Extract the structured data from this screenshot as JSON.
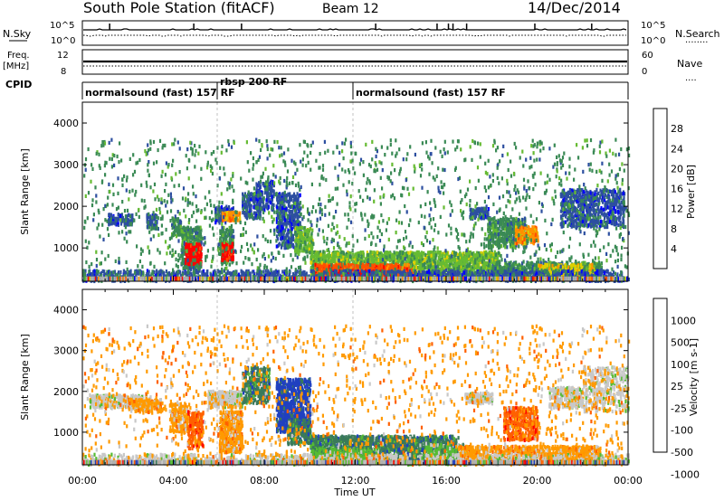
{
  "header": {
    "station": "South Pole Station (fitACF)",
    "beam": "Beam 12",
    "date": "14/Dec/2014"
  },
  "panel_sky": {
    "left_label": "N.Sky",
    "left_ticks": [
      "10^5",
      "10^0"
    ],
    "right_label": "N.Search",
    "right_ticks": [
      "10^5",
      "10^0"
    ],
    "right_legend": "........"
  },
  "panel_freq": {
    "left_label_1": "Freq.",
    "left_label_2": "[MHz]",
    "left_ticks": [
      "12",
      "8"
    ],
    "right_label": "Nave",
    "right_ticks": [
      "60",
      "0"
    ],
    "right_legend": "...."
  },
  "cpid": {
    "label": "CPID",
    "segments": [
      "normalsound (fast) 157 RF",
      "rbsp 200 RF",
      "normalsound (fast) 157 RF"
    ]
  },
  "colors": {
    "power": [
      "#0000ff",
      "#2d4fa0",
      "#3a8a55",
      "#66bb33",
      "#ddd000",
      "#ff9000",
      "#ff5000",
      "#ff0000"
    ],
    "velocity": [
      "#2040c0",
      "#3a7a5a",
      "#55bb33",
      "#c8c8c8",
      "#ff9a00",
      "#ff6000",
      "#ff0000"
    ],
    "ground_scatter": "#b0b0b0"
  },
  "chart_data": [
    {
      "type": "heatmap",
      "quantity": "Power",
      "ylabel": "Slant Range [km]",
      "yticks": [
        1000,
        2000,
        3000,
        4000
      ],
      "ylim": [
        200,
        4500
      ],
      "xlim_hours": [
        0,
        24
      ],
      "colorbar_label": "Power [dB]",
      "colorbar_ticks": [
        "4",
        "8",
        "12",
        "16",
        "20",
        "24",
        "28"
      ],
      "regions": [
        {
          "t": [
            1.1,
            2.2
          ],
          "r": [
            1550,
            1800
          ],
          "c": 1,
          "d": 0.8
        },
        {
          "t": [
            2.8,
            3.3
          ],
          "r": [
            1450,
            1800
          ],
          "c": 1,
          "d": 0.7
        },
        {
          "t": [
            3.9,
            4.3
          ],
          "r": [
            1300,
            1700
          ],
          "c": 2,
          "d": 0.7
        },
        {
          "t": [
            4.3,
            5.2
          ],
          "r": [
            500,
            1500
          ],
          "c": 2,
          "d": 0.75
        },
        {
          "t": [
            4.5,
            5.2
          ],
          "r": [
            600,
            1100
          ],
          "c": 7,
          "d": 0.85
        },
        {
          "t": [
            5.8,
            6.6
          ],
          "r": [
            1600,
            2000
          ],
          "c": 1,
          "d": 0.6
        },
        {
          "t": [
            6.1,
            6.9
          ],
          "r": [
            1650,
            1850
          ],
          "c": 5,
          "d": 0.85
        },
        {
          "t": [
            6.0,
            6.6
          ],
          "r": [
            600,
            1500
          ],
          "c": 2,
          "d": 0.6
        },
        {
          "t": [
            6.1,
            6.6
          ],
          "r": [
            700,
            1100
          ],
          "c": 7,
          "d": 0.8
        },
        {
          "t": [
            7.0,
            7.8
          ],
          "r": [
            1700,
            2300
          ],
          "c": 1,
          "d": 0.55
        },
        {
          "t": [
            7.6,
            8.4
          ],
          "r": [
            1900,
            2600
          ],
          "c": 1,
          "d": 0.5
        },
        {
          "t": [
            8.5,
            9.6
          ],
          "r": [
            1000,
            2300
          ],
          "c": 1,
          "d": 0.55
        },
        {
          "t": [
            9.3,
            10.1
          ],
          "r": [
            900,
            1500
          ],
          "c": 3,
          "d": 0.6
        },
        {
          "t": [
            10.0,
            18.3
          ],
          "r": [
            250,
            900
          ],
          "c": 3,
          "d": 0.85
        },
        {
          "t": [
            10.2,
            14.5
          ],
          "r": [
            280,
            600
          ],
          "c": 6,
          "d": 0.85
        },
        {
          "t": [
            11.0,
            13.5
          ],
          "r": [
            280,
            450
          ],
          "c": 7,
          "d": 0.85
        },
        {
          "t": [
            17.0,
            17.9
          ],
          "r": [
            1700,
            1950
          ],
          "c": 1,
          "d": 0.8
        },
        {
          "t": [
            17.8,
            19.5
          ],
          "r": [
            1000,
            1700
          ],
          "c": 2,
          "d": 0.6
        },
        {
          "t": [
            19.0,
            20.0
          ],
          "r": [
            1100,
            1500
          ],
          "c": 5,
          "d": 0.7
        },
        {
          "t": [
            18.0,
            22.8
          ],
          "r": [
            280,
            650
          ],
          "c": 2,
          "d": 0.8
        },
        {
          "t": [
            20.0,
            22.5
          ],
          "r": [
            280,
            600
          ],
          "c": 4,
          "d": 0.6
        },
        {
          "t": [
            21.0,
            23.8
          ],
          "r": [
            1500,
            2400
          ],
          "c": 1,
          "d": 0.5
        },
        {
          "t": [
            0.0,
            24.0
          ],
          "r": [
            200,
            450
          ],
          "c": 1,
          "d": 0.45
        },
        {
          "t": [
            0.0,
            24.0
          ],
          "r": [
            200,
            3600
          ],
          "c": 2,
          "d": 0.04
        }
      ]
    },
    {
      "type": "heatmap",
      "quantity": "Velocity",
      "xlabel": "Time UT",
      "ylabel": "Slant Range [km]",
      "yticks": [
        1000,
        2000,
        3000,
        4000
      ],
      "ylim": [
        200,
        4500
      ],
      "xticks": [
        "00:00",
        "04:00",
        "08:00",
        "12:00",
        "16:00",
        "20:00",
        "00:00"
      ],
      "xlim_hours": [
        0,
        24
      ],
      "colorbar_label": "Velocity [m s-1]",
      "colorbar_ticks": [
        "1000",
        "500",
        "100",
        "25",
        "-25",
        "-100",
        "-500",
        "-1000"
      ],
      "regions": [
        {
          "t": [
            0.3,
            3.0
          ],
          "r": [
            1600,
            1900
          ],
          "c": 3,
          "d": 0.75
        },
        {
          "t": [
            2.0,
            3.5
          ],
          "r": [
            1500,
            1800
          ],
          "c": 4,
          "d": 0.6
        },
        {
          "t": [
            3.8,
            4.6
          ],
          "r": [
            1000,
            1700
          ],
          "c": 4,
          "d": 0.7
        },
        {
          "t": [
            4.6,
            5.3
          ],
          "r": [
            600,
            1500
          ],
          "c": 5,
          "d": 0.6
        },
        {
          "t": [
            5.5,
            7.0
          ],
          "r": [
            1600,
            2000
          ],
          "c": 3,
          "d": 0.85
        },
        {
          "t": [
            6.0,
            7.0
          ],
          "r": [
            500,
            1500
          ],
          "c": 4,
          "d": 0.8
        },
        {
          "t": [
            7.0,
            8.2
          ],
          "r": [
            1700,
            2600
          ],
          "c": 1,
          "d": 0.55
        },
        {
          "t": [
            8.5,
            10.0
          ],
          "r": [
            1000,
            2300
          ],
          "c": 0,
          "d": 0.8
        },
        {
          "t": [
            9.0,
            10.0
          ],
          "r": [
            700,
            1300
          ],
          "c": 1,
          "d": 0.7
        },
        {
          "t": [
            10.0,
            16.5
          ],
          "r": [
            250,
            900
          ],
          "c": 1,
          "d": 0.85
        },
        {
          "t": [
            10.0,
            13.0
          ],
          "r": [
            250,
            600
          ],
          "c": 2,
          "d": 0.6
        },
        {
          "t": [
            15.0,
            16.8
          ],
          "r": [
            250,
            700
          ],
          "c": 2,
          "d": 0.5
        },
        {
          "t": [
            16.5,
            19.0
          ],
          "r": [
            250,
            650
          ],
          "c": 4,
          "d": 0.75
        },
        {
          "t": [
            16.8,
            18.0
          ],
          "r": [
            1700,
            1950
          ],
          "c": 3,
          "d": 0.85
        },
        {
          "t": [
            18.5,
            20.0
          ],
          "r": [
            800,
            1600
          ],
          "c": 5,
          "d": 0.6
        },
        {
          "t": [
            19.0,
            22.8
          ],
          "r": [
            300,
            650
          ],
          "c": 4,
          "d": 0.85
        },
        {
          "t": [
            20.5,
            22.0
          ],
          "r": [
            1600,
            2100
          ],
          "c": 3,
          "d": 0.6
        },
        {
          "t": [
            22.0,
            24.0
          ],
          "r": [
            1500,
            2600
          ],
          "c": 3,
          "d": 0.3
        },
        {
          "t": [
            0.0,
            24.0
          ],
          "r": [
            200,
            450
          ],
          "c": 3,
          "d": 0.35
        },
        {
          "t": [
            0.0,
            24.0
          ],
          "r": [
            200,
            3600
          ],
          "c": 4,
          "d": 0.035
        }
      ]
    }
  ]
}
